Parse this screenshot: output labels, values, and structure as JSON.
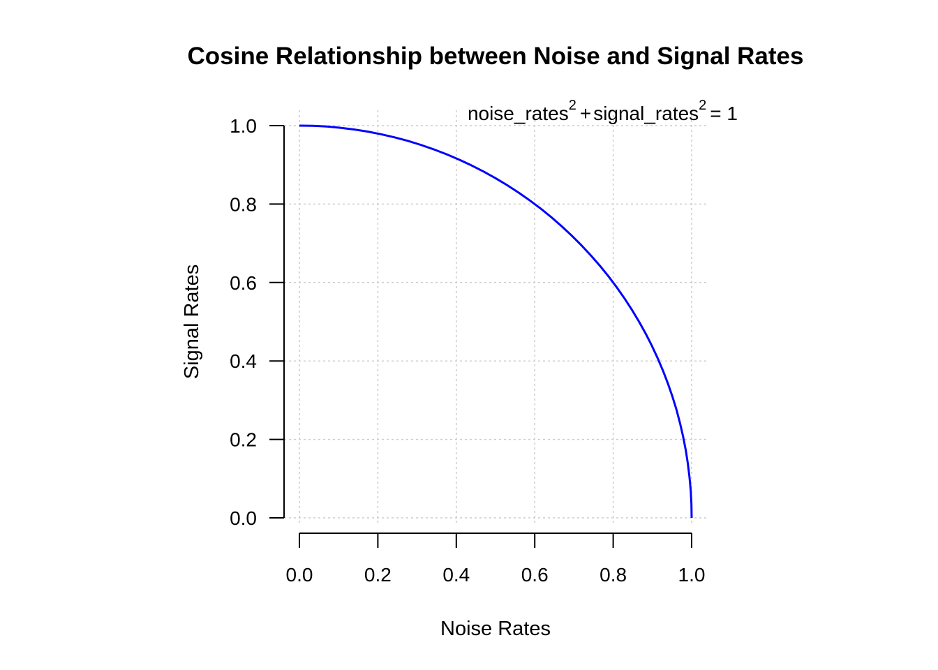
{
  "chart_data": {
    "type": "line",
    "title": "Cosine Relationship between Noise and Signal Rates",
    "xlabel": "Noise Rates",
    "ylabel": "Signal Rates",
    "xlim": [
      0,
      1
    ],
    "ylim": [
      0,
      1
    ],
    "x_ticks": [
      "0.0",
      "0.2",
      "0.4",
      "0.6",
      "0.8",
      "1.0"
    ],
    "y_ticks": [
      "0.0",
      "0.2",
      "0.4",
      "0.6",
      "0.8",
      "1.0"
    ],
    "grid": true,
    "annotation": {
      "noise_term": "noise_rates",
      "signal_term": "signal_rates",
      "exponent": "2",
      "plus": "+",
      "equals": "= 1"
    },
    "series": [
      {
        "color": "#0000ff",
        "x": [
          0.0,
          0.0349,
          0.0698,
          0.1045,
          0.1392,
          0.1736,
          0.2079,
          0.2419,
          0.2756,
          0.309,
          0.342,
          0.3746,
          0.4067,
          0.4384,
          0.4695,
          0.5,
          0.5299,
          0.5592,
          0.5878,
          0.6157,
          0.6428,
          0.6691,
          0.6947,
          0.7193,
          0.7431,
          0.766,
          0.788,
          0.809,
          0.829,
          0.848,
          0.866,
          0.8829,
          0.8988,
          0.9135,
          0.9272,
          0.9397,
          0.9511,
          0.9613,
          0.9703,
          0.9781,
          0.9848,
          0.9903,
          0.9945,
          0.9976,
          0.9994,
          1.0
        ],
        "y": [
          1.0,
          0.9994,
          0.9976,
          0.9945,
          0.9903,
          0.9848,
          0.9781,
          0.9703,
          0.9613,
          0.9511,
          0.9397,
          0.9272,
          0.9135,
          0.8988,
          0.8829,
          0.866,
          0.848,
          0.829,
          0.809,
          0.788,
          0.766,
          0.7431,
          0.7193,
          0.6947,
          0.6691,
          0.6428,
          0.6157,
          0.5878,
          0.5592,
          0.5299,
          0.5,
          0.4695,
          0.4384,
          0.4067,
          0.3746,
          0.342,
          0.309,
          0.2756,
          0.2419,
          0.2079,
          0.1736,
          0.1392,
          0.1045,
          0.0698,
          0.0349,
          0.0
        ]
      }
    ]
  }
}
